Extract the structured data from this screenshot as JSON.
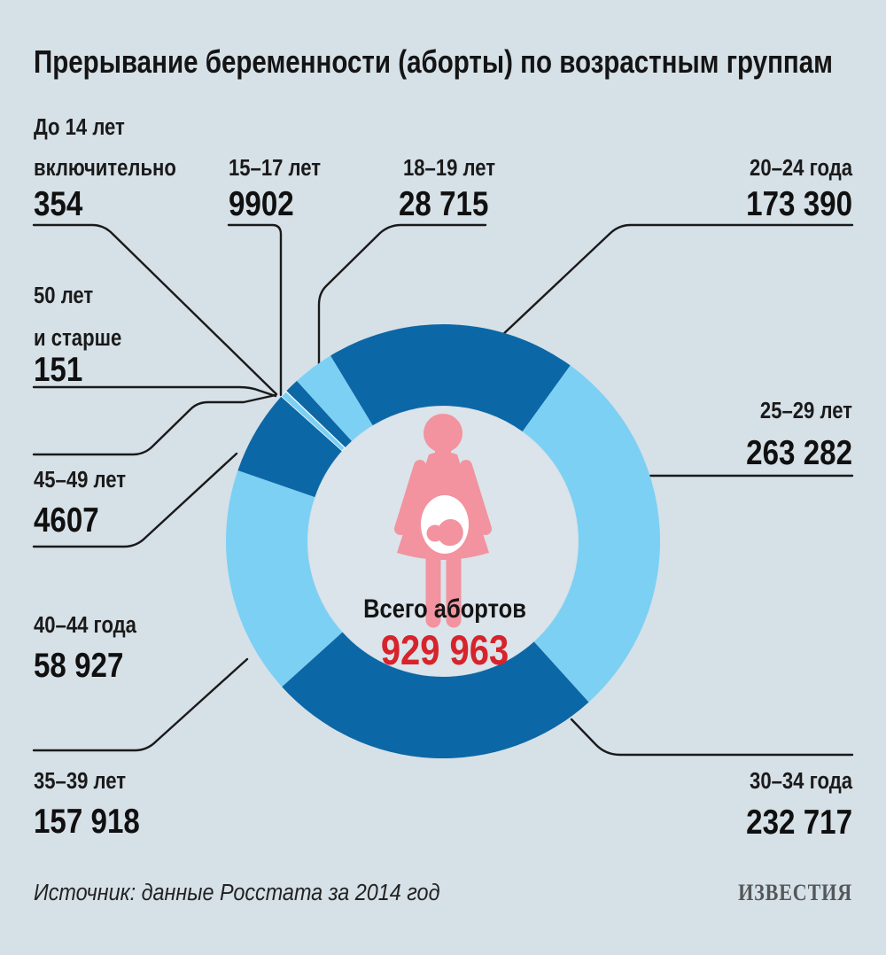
{
  "title": "Прерывание беременности (аборты) по возрастным группам",
  "source": "Источник: данные Росстата за 2014 год",
  "logo": "ИЗВЕСТИЯ",
  "center": {
    "label": "Всего абортов",
    "value": "929 963"
  },
  "colors": {
    "background": "#d6e0e7",
    "hole": "#dae4ea",
    "dark_blue": "#0c67a6",
    "light_blue": "#7cd0f4",
    "red": "#d7232b",
    "pink": "#f2939f",
    "fetus_white": "#ffffff",
    "text": "#1a1a1a",
    "logo_gray": "#55585b"
  },
  "chart_data": {
    "type": "pie",
    "subtype": "donut",
    "title": "Прерывание беременности (аборты) по возрастным группам",
    "total_label": "Всего абортов",
    "total": 929963,
    "rotation_deg": -46.3,
    "clockwise": true,
    "legend_position": "callouts-around-donut",
    "segments": [
      {
        "label": "До 14 лет включительно",
        "label_line1": "До 14 лет",
        "label_line2": "включительно",
        "value": 354,
        "display": "354",
        "shade": "light"
      },
      {
        "label": "15–17 лет",
        "value": 9902,
        "display": "9902",
        "shade": "dark"
      },
      {
        "label": "18–19 лет",
        "value": 28715,
        "display": "28 715",
        "shade": "light"
      },
      {
        "label": "20–24 года",
        "value": 173390,
        "display": "173 390",
        "shade": "dark"
      },
      {
        "label": "25–29 лет",
        "value": 263282,
        "display": "263 282",
        "shade": "light"
      },
      {
        "label": "30–34 года",
        "value": 232717,
        "display": "232 717",
        "shade": "dark"
      },
      {
        "label": "35–39 лет",
        "value": 157918,
        "display": "157 918",
        "shade": "light"
      },
      {
        "label": "40–44 года",
        "value": 58927,
        "display": "58 927",
        "shade": "dark"
      },
      {
        "label": "45–49 лет",
        "value": 4607,
        "display": "4607",
        "shade": "light"
      },
      {
        "label": "50 лет и старше",
        "label_line1": "50 лет",
        "label_line2": "и старше",
        "value": 151,
        "display": "151",
        "shade": "dark"
      }
    ]
  }
}
